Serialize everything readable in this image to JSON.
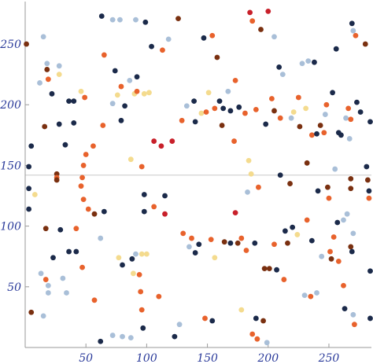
{
  "chart_data": {
    "type": "scatter",
    "title": "",
    "xlabel": "",
    "ylabel": "",
    "xlim": [
      0,
      285
    ],
    "ylim": [
      0,
      285
    ],
    "xticks": [
      50,
      100,
      150,
      200,
      250
    ],
    "yticks": [
      50,
      100,
      150,
      200,
      250
    ],
    "xtick_labels": [
      "50",
      "100",
      "150",
      "200",
      "250"
    ],
    "ytick_labels": [
      "50",
      "100",
      "150",
      "200",
      "250"
    ],
    "horizontal_reference_line": 142,
    "grid": false,
    "legend": "none",
    "colors": {
      "navy": "#1b2a4a",
      "light_blue": "#a9bfd8",
      "orange": "#e8622c",
      "brown": "#7a3010",
      "cream": "#f4db8e",
      "red": "#c8202a",
      "axis": "#9a9a9a",
      "tick_label": "#2a3a9a"
    },
    "points": [
      {
        "x": 5,
        "y": 166,
        "c": "navy"
      },
      {
        "x": 1,
        "y": 250,
        "c": "brown"
      },
      {
        "x": 3,
        "y": 149,
        "c": "navy"
      },
      {
        "x": 3,
        "y": 131,
        "c": "navy"
      },
      {
        "x": 3,
        "y": 114,
        "c": "navy"
      },
      {
        "x": 5,
        "y": 29,
        "c": "brown"
      },
      {
        "x": 8,
        "y": 126,
        "c": "cream"
      },
      {
        "x": 12,
        "y": 218,
        "c": "light_blue"
      },
      {
        "x": 13,
        "y": 61,
        "c": "light_blue"
      },
      {
        "x": 15,
        "y": 256,
        "c": "light_blue"
      },
      {
        "x": 15,
        "y": 26,
        "c": "light_blue"
      },
      {
        "x": 16,
        "y": 182,
        "c": "brown"
      },
      {
        "x": 17,
        "y": 98,
        "c": "brown"
      },
      {
        "x": 17,
        "y": 56,
        "c": "orange"
      },
      {
        "x": 18,
        "y": 234,
        "c": "light_blue"
      },
      {
        "x": 18,
        "y": 229,
        "c": "brown"
      },
      {
        "x": 19,
        "y": 221,
        "c": "orange"
      },
      {
        "x": 19,
        "y": 51,
        "c": "light_blue"
      },
      {
        "x": 19,
        "y": 45,
        "c": "light_blue"
      },
      {
        "x": 22,
        "y": 209,
        "c": "navy"
      },
      {
        "x": 23,
        "y": 74,
        "c": "navy"
      },
      {
        "x": 26,
        "y": 143,
        "c": "brown"
      },
      {
        "x": 26,
        "y": 140,
        "c": "orange"
      },
      {
        "x": 26,
        "y": 138,
        "c": "brown"
      },
      {
        "x": 28,
        "y": 232,
        "c": "light_blue"
      },
      {
        "x": 28,
        "y": 225,
        "c": "cream"
      },
      {
        "x": 28,
        "y": 184,
        "c": "navy"
      },
      {
        "x": 29,
        "y": 97,
        "c": "navy"
      },
      {
        "x": 31,
        "y": 57,
        "c": "light_blue"
      },
      {
        "x": 33,
        "y": 167,
        "c": "navy"
      },
      {
        "x": 34,
        "y": 45,
        "c": "light_blue"
      },
      {
        "x": 36,
        "y": 203,
        "c": "navy"
      },
      {
        "x": 36,
        "y": 79,
        "c": "navy"
      },
      {
        "x": 40,
        "y": 203,
        "c": "navy"
      },
      {
        "x": 40,
        "y": 185,
        "c": "navy"
      },
      {
        "x": 42,
        "y": 79,
        "c": "navy"
      },
      {
        "x": 42,
        "y": 98,
        "c": "orange"
      },
      {
        "x": 46,
        "y": 211,
        "c": "cream"
      },
      {
        "x": 47,
        "y": 66,
        "c": "orange"
      },
      {
        "x": 49,
        "y": 206,
        "c": "orange"
      },
      {
        "x": 50,
        "y": 159,
        "c": "orange"
      },
      {
        "x": 48,
        "y": 150,
        "c": "orange"
      },
      {
        "x": 47,
        "y": 140,
        "c": "orange"
      },
      {
        "x": 46,
        "y": 133,
        "c": "orange"
      },
      {
        "x": 48,
        "y": 122,
        "c": "orange"
      },
      {
        "x": 52,
        "y": 114,
        "c": "orange"
      },
      {
        "x": 56,
        "y": 166,
        "c": "orange"
      },
      {
        "x": 57,
        "y": 110,
        "c": "brown"
      },
      {
        "x": 57,
        "y": 39,
        "c": "orange"
      },
      {
        "x": 62,
        "y": 5,
        "c": "navy"
      },
      {
        "x": 63,
        "y": 273,
        "c": "navy"
      },
      {
        "x": 64,
        "y": 183,
        "c": "orange"
      },
      {
        "x": 65,
        "y": 112,
        "c": "navy"
      },
      {
        "x": 65,
        "y": 241,
        "c": "orange"
      },
      {
        "x": 62,
        "y": 90,
        "c": "light_blue"
      },
      {
        "x": 72,
        "y": 270,
        "c": "light_blue"
      },
      {
        "x": 72,
        "y": 10,
        "c": "light_blue"
      },
      {
        "x": 72,
        "y": 201,
        "c": "light_blue"
      },
      {
        "x": 74,
        "y": 228,
        "c": "navy"
      },
      {
        "x": 76,
        "y": 208,
        "c": "cream"
      },
      {
        "x": 77,
        "y": 74,
        "c": "cream"
      },
      {
        "x": 78,
        "y": 270,
        "c": "light_blue"
      },
      {
        "x": 79,
        "y": 187,
        "c": "navy"
      },
      {
        "x": 79,
        "y": 215,
        "c": "orange"
      },
      {
        "x": 80,
        "y": 68,
        "c": "navy"
      },
      {
        "x": 80,
        "y": 9,
        "c": "light_blue"
      },
      {
        "x": 82,
        "y": 199,
        "c": "navy"
      },
      {
        "x": 86,
        "y": 220,
        "c": "light_blue"
      },
      {
        "x": 87,
        "y": 155,
        "c": "cream"
      },
      {
        "x": 87,
        "y": 8,
        "c": "light_blue"
      },
      {
        "x": 88,
        "y": 73,
        "c": "navy"
      },
      {
        "x": 89,
        "y": 61,
        "c": "cream"
      },
      {
        "x": 90,
        "y": 209,
        "c": "cream"
      },
      {
        "x": 91,
        "y": 270,
        "c": "light_blue"
      },
      {
        "x": 91,
        "y": 77,
        "c": "light_blue"
      },
      {
        "x": 92,
        "y": 211,
        "c": "orange"
      },
      {
        "x": 92,
        "y": 223,
        "c": "navy"
      },
      {
        "x": 94,
        "y": 60,
        "c": "orange"
      },
      {
        "x": 96,
        "y": 149,
        "c": "orange"
      },
      {
        "x": 96,
        "y": 77,
        "c": "cream"
      },
      {
        "x": 95,
        "y": 46,
        "c": "orange"
      },
      {
        "x": 96,
        "y": 31,
        "c": "orange"
      },
      {
        "x": 97,
        "y": 16,
        "c": "navy"
      },
      {
        "x": 98,
        "y": 209,
        "c": "cream"
      },
      {
        "x": 98,
        "y": 126,
        "c": "navy"
      },
      {
        "x": 98,
        "y": 112,
        "c": "navy"
      },
      {
        "x": 99,
        "y": 268,
        "c": "navy"
      },
      {
        "x": 100,
        "y": 77,
        "c": "cream"
      },
      {
        "x": 102,
        "y": 210,
        "c": "cream"
      },
      {
        "x": 104,
        "y": 248,
        "c": "navy"
      },
      {
        "x": 106,
        "y": 170,
        "c": "red"
      },
      {
        "x": 106,
        "y": 116,
        "c": "orange"
      },
      {
        "x": 110,
        "y": 42,
        "c": "orange"
      },
      {
        "x": 112,
        "y": 166,
        "c": "red"
      },
      {
        "x": 113,
        "y": 245,
        "c": "orange"
      },
      {
        "x": 115,
        "y": 125,
        "c": "navy"
      },
      {
        "x": 115,
        "y": 110,
        "c": "red"
      },
      {
        "x": 118,
        "y": 254,
        "c": "light_blue"
      },
      {
        "x": 121,
        "y": 170,
        "c": "red"
      },
      {
        "x": 123,
        "y": 9,
        "c": "navy"
      },
      {
        "x": 126,
        "y": 271,
        "c": "brown"
      },
      {
        "x": 127,
        "y": 19,
        "c": "light_blue"
      },
      {
        "x": 129,
        "y": 187,
        "c": "orange"
      },
      {
        "x": 130,
        "y": 94,
        "c": "orange"
      },
      {
        "x": 133,
        "y": 199,
        "c": "light_blue"
      },
      {
        "x": 135,
        "y": 83,
        "c": "light_blue"
      },
      {
        "x": 137,
        "y": 90,
        "c": "orange"
      },
      {
        "x": 139,
        "y": 203,
        "c": "navy"
      },
      {
        "x": 140,
        "y": 186,
        "c": "navy"
      },
      {
        "x": 140,
        "y": 78,
        "c": "navy"
      },
      {
        "x": 143,
        "y": 85,
        "c": "navy"
      },
      {
        "x": 145,
        "y": 193,
        "c": "cream"
      },
      {
        "x": 147,
        "y": 255,
        "c": "navy"
      },
      {
        "x": 148,
        "y": 24,
        "c": "orange"
      },
      {
        "x": 149,
        "y": 194,
        "c": "orange"
      },
      {
        "x": 151,
        "y": 210,
        "c": "cream"
      },
      {
        "x": 153,
        "y": 89,
        "c": "orange"
      },
      {
        "x": 154,
        "y": 22,
        "c": "navy"
      },
      {
        "x": 154,
        "y": 257,
        "c": "orange"
      },
      {
        "x": 156,
        "y": 74,
        "c": "cream"
      },
      {
        "x": 156,
        "y": 197,
        "c": "orange"
      },
      {
        "x": 158,
        "y": 239,
        "c": "brown"
      },
      {
        "x": 160,
        "y": 203,
        "c": "navy"
      },
      {
        "x": 162,
        "y": 183,
        "c": "brown"
      },
      {
        "x": 163,
        "y": 197,
        "c": "navy"
      },
      {
        "x": 164,
        "y": 87,
        "c": "brown"
      },
      {
        "x": 167,
        "y": 211,
        "c": "light_blue"
      },
      {
        "x": 169,
        "y": 195,
        "c": "navy"
      },
      {
        "x": 169,
        "y": 86,
        "c": "navy"
      },
      {
        "x": 172,
        "y": 170,
        "c": "orange"
      },
      {
        "x": 173,
        "y": 111,
        "c": "red"
      },
      {
        "x": 173,
        "y": 220,
        "c": "orange"
      },
      {
        "x": 175,
        "y": 86,
        "c": "brown"
      },
      {
        "x": 176,
        "y": 198,
        "c": "navy"
      },
      {
        "x": 178,
        "y": 90,
        "c": "orange"
      },
      {
        "x": 178,
        "y": 31,
        "c": "cream"
      },
      {
        "x": 181,
        "y": 193,
        "c": "orange"
      },
      {
        "x": 182,
        "y": 80,
        "c": "orange"
      },
      {
        "x": 183,
        "y": 128,
        "c": "light_blue"
      },
      {
        "x": 184,
        "y": 154,
        "c": "cream"
      },
      {
        "x": 185,
        "y": 276,
        "c": "red"
      },
      {
        "x": 186,
        "y": 143,
        "c": "cream"
      },
      {
        "x": 187,
        "y": 269,
        "c": "orange"
      },
      {
        "x": 187,
        "y": 11,
        "c": "orange"
      },
      {
        "x": 189,
        "y": 86,
        "c": "navy"
      },
      {
        "x": 190,
        "y": 196,
        "c": "orange"
      },
      {
        "x": 190,
        "y": 24,
        "c": "navy"
      },
      {
        "x": 191,
        "y": 7,
        "c": "orange"
      },
      {
        "x": 192,
        "y": 132,
        "c": "orange"
      },
      {
        "x": 194,
        "y": 262,
        "c": "brown"
      },
      {
        "x": 196,
        "y": 22,
        "c": "brown"
      },
      {
        "x": 197,
        "y": 65,
        "c": "brown"
      },
      {
        "x": 198,
        "y": 184,
        "c": "navy"
      },
      {
        "x": 199,
        "y": 4,
        "c": "light_blue"
      },
      {
        "x": 200,
        "y": 277,
        "c": "red"
      },
      {
        "x": 201,
        "y": 65,
        "c": "brown"
      },
      {
        "x": 203,
        "y": 205,
        "c": "orange"
      },
      {
        "x": 205,
        "y": 256,
        "c": "light_blue"
      },
      {
        "x": 205,
        "y": 195,
        "c": "brown"
      },
      {
        "x": 205,
        "y": 85,
        "c": "orange"
      },
      {
        "x": 207,
        "y": 64,
        "c": "navy"
      },
      {
        "x": 209,
        "y": 231,
        "c": "navy"
      },
      {
        "x": 210,
        "y": 189,
        "c": "orange"
      },
      {
        "x": 210,
        "y": 142,
        "c": "navy"
      },
      {
        "x": 212,
        "y": 225,
        "c": "light_blue"
      },
      {
        "x": 213,
        "y": 56,
        "c": "orange"
      },
      {
        "x": 214,
        "y": 96,
        "c": "navy"
      },
      {
        "x": 216,
        "y": 86,
        "c": "brown"
      },
      {
        "x": 218,
        "y": 135,
        "c": "brown"
      },
      {
        "x": 219,
        "y": 189,
        "c": "light_blue"
      },
      {
        "x": 220,
        "y": 99,
        "c": "navy"
      },
      {
        "x": 221,
        "y": 194,
        "c": "cream"
      },
      {
        "x": 224,
        "y": 93,
        "c": "cream"
      },
      {
        "x": 225,
        "y": 206,
        "c": "orange"
      },
      {
        "x": 226,
        "y": 182,
        "c": "brown"
      },
      {
        "x": 228,
        "y": 234,
        "c": "light_blue"
      },
      {
        "x": 230,
        "y": 43,
        "c": "light_blue"
      },
      {
        "x": 231,
        "y": 197,
        "c": "cream"
      },
      {
        "x": 232,
        "y": 152,
        "c": "brown"
      },
      {
        "x": 232,
        "y": 105,
        "c": "orange"
      },
      {
        "x": 233,
        "y": 236,
        "c": "light_blue"
      },
      {
        "x": 235,
        "y": 42,
        "c": "orange"
      },
      {
        "x": 236,
        "y": 88,
        "c": "navy"
      },
      {
        "x": 236,
        "y": 175,
        "c": "orange"
      },
      {
        "x": 238,
        "y": 235,
        "c": "navy"
      },
      {
        "x": 240,
        "y": 176,
        "c": "navy"
      },
      {
        "x": 240,
        "y": 45,
        "c": "light_blue"
      },
      {
        "x": 241,
        "y": 129,
        "c": "navy"
      },
      {
        "x": 243,
        "y": 183,
        "c": "brown"
      },
      {
        "x": 244,
        "y": 75,
        "c": "light_blue"
      },
      {
        "x": 246,
        "y": 177,
        "c": "orange"
      },
      {
        "x": 247,
        "y": 192,
        "c": "light_blue"
      },
      {
        "x": 248,
        "y": 200,
        "c": "orange"
      },
      {
        "x": 249,
        "y": 132,
        "c": "brown"
      },
      {
        "x": 250,
        "y": 123,
        "c": "orange"
      },
      {
        "x": 251,
        "y": 79,
        "c": "orange"
      },
      {
        "x": 252,
        "y": 73,
        "c": "brown"
      },
      {
        "x": 253,
        "y": 210,
        "c": "navy"
      },
      {
        "x": 254,
        "y": 91,
        "c": "orange"
      },
      {
        "x": 255,
        "y": 147,
        "c": "light_blue"
      },
      {
        "x": 256,
        "y": 246,
        "c": "navy"
      },
      {
        "x": 257,
        "y": 103,
        "c": "navy"
      },
      {
        "x": 258,
        "y": 177,
        "c": "navy"
      },
      {
        "x": 258,
        "y": 71,
        "c": "orange"
      },
      {
        "x": 260,
        "y": 175,
        "c": "navy"
      },
      {
        "x": 262,
        "y": 105,
        "c": "light_blue"
      },
      {
        "x": 262,
        "y": 51,
        "c": "orange"
      },
      {
        "x": 263,
        "y": 32,
        "c": "navy"
      },
      {
        "x": 264,
        "y": 189,
        "c": "light_blue"
      },
      {
        "x": 265,
        "y": 110,
        "c": "light_blue"
      },
      {
        "x": 266,
        "y": 197,
        "c": "orange"
      },
      {
        "x": 267,
        "y": 172,
        "c": "light_blue"
      },
      {
        "x": 268,
        "y": 188,
        "c": "orange"
      },
      {
        "x": 268,
        "y": 131,
        "c": "brown"
      },
      {
        "x": 268,
        "y": 139,
        "c": "brown"
      },
      {
        "x": 268,
        "y": 83,
        "c": "brown"
      },
      {
        "x": 269,
        "y": 267,
        "c": "navy"
      },
      {
        "x": 269,
        "y": 79,
        "c": "navy"
      },
      {
        "x": 270,
        "y": 261,
        "c": "light_blue"
      },
      {
        "x": 270,
        "y": 94,
        "c": "light_blue"
      },
      {
        "x": 270,
        "y": 27,
        "c": "light_blue"
      },
      {
        "x": 271,
        "y": 19,
        "c": "orange"
      },
      {
        "x": 272,
        "y": 257,
        "c": "orange"
      },
      {
        "x": 273,
        "y": 202,
        "c": "navy"
      },
      {
        "x": 276,
        "y": 194,
        "c": "navy"
      },
      {
        "x": 280,
        "y": 250,
        "c": "brown"
      },
      {
        "x": 281,
        "y": 149,
        "c": "navy"
      },
      {
        "x": 282,
        "y": 138,
        "c": "brown"
      },
      {
        "x": 283,
        "y": 129,
        "c": "navy"
      },
      {
        "x": 283,
        "y": 123,
        "c": "orange"
      },
      {
        "x": 284,
        "y": 186,
        "c": "navy"
      },
      {
        "x": 284,
        "y": 63,
        "c": "navy"
      },
      {
        "x": 284,
        "y": 24,
        "c": "navy"
      }
    ]
  }
}
